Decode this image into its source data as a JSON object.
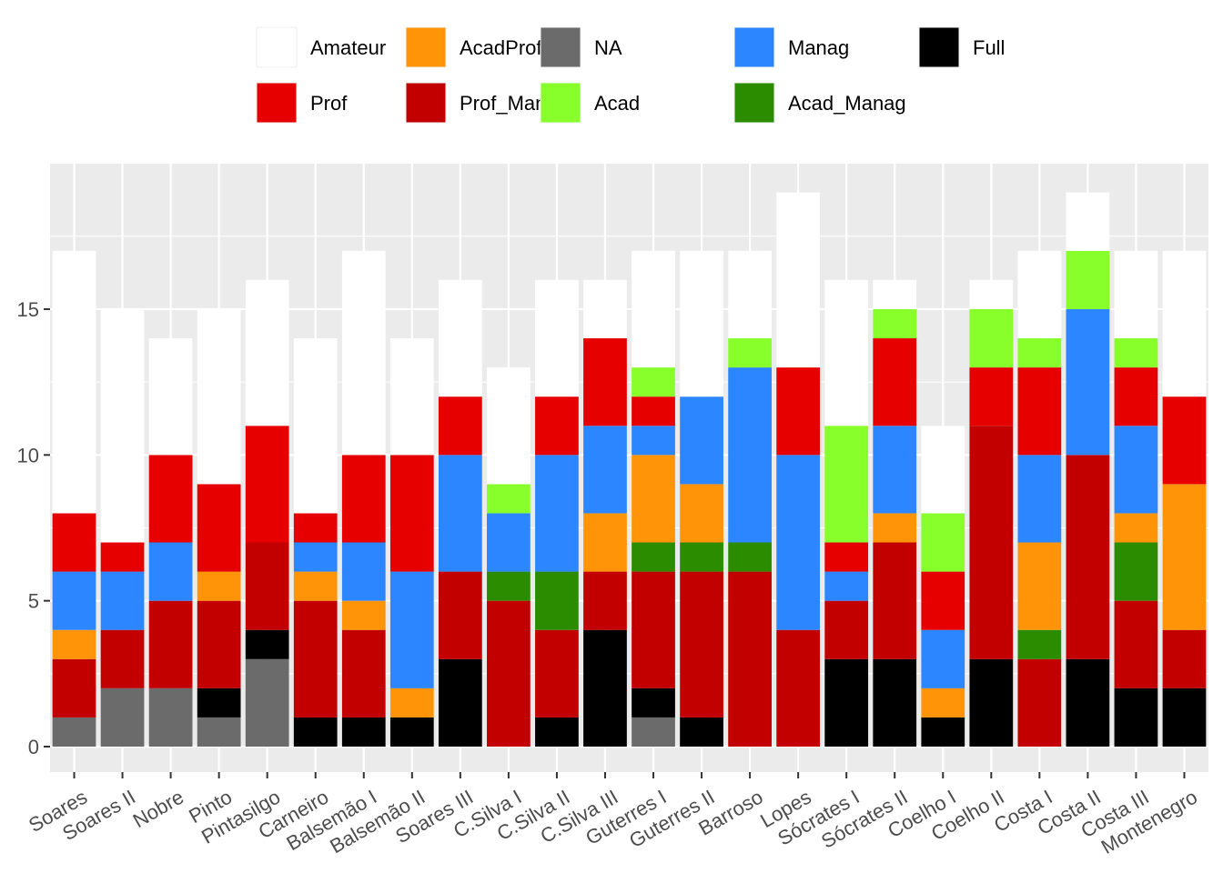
{
  "chart_data": {
    "type": "bar",
    "stacked": true,
    "title": "",
    "xlabel": "",
    "ylabel": "",
    "ylim": [
      0,
      19.5
    ],
    "y_ticks": [
      0,
      5,
      10,
      15
    ],
    "grid": true,
    "legend_position": "top",
    "categories": [
      "Soares",
      "Soares II",
      "Nobre",
      "Pinto",
      "Pintasilgo",
      "Carneiro",
      "Balsemão I",
      "Balsemão II",
      "Soares III",
      "C.Silva I",
      "C.Silva II",
      "C.Silva III",
      "Guterres I",
      "Guterres II",
      "Barroso",
      "Lopes",
      "Sócrates I",
      "Sócrates II",
      "Coelho I",
      "Coelho II",
      "Costa I",
      "Costa II",
      "Costa III",
      "Montenegro"
    ],
    "legend_order": [
      "Amateur",
      "Prof",
      "AcadProf",
      "Prof_Manag",
      "NA",
      "Acad",
      "Manag",
      "Acad_Manag",
      "Full"
    ],
    "stack_order": [
      "NA",
      "Full",
      "Prof_Manag",
      "Acad_Manag",
      "AcadProf",
      "Manag",
      "Prof",
      "Acad",
      "Amateur"
    ],
    "colors": {
      "Amateur": "#ffffff",
      "Acad": "#88ff2a",
      "Prof": "#e60000",
      "Manag": "#2b86ff",
      "AcadProf": "#ff9408",
      "Acad_Manag": "#2b8c00",
      "Prof_Manag": "#c30000",
      "Full": "#000000",
      "NA": "#6b6b6b"
    },
    "series": [
      {
        "name": "NA",
        "values": [
          1,
          2,
          2,
          1,
          3,
          0,
          0,
          0,
          0,
          0,
          0,
          0,
          1,
          0,
          0,
          0,
          0,
          0,
          0,
          0,
          0,
          0,
          0,
          0
        ]
      },
      {
        "name": "Full",
        "values": [
          0,
          0,
          0,
          1,
          1,
          1,
          1,
          1,
          3,
          0,
          1,
          4,
          1,
          1,
          0,
          0,
          3,
          3,
          1,
          3,
          0,
          3,
          2,
          2
        ]
      },
      {
        "name": "Prof_Manag",
        "values": [
          2,
          2,
          3,
          3,
          3,
          4,
          3,
          0,
          3,
          5,
          3,
          2,
          4,
          5,
          6,
          4,
          2,
          4,
          0,
          8,
          3,
          7,
          3,
          2
        ]
      },
      {
        "name": "Acad_Manag",
        "values": [
          0,
          0,
          0,
          0,
          0,
          0,
          0,
          0,
          0,
          1,
          2,
          0,
          1,
          1,
          1,
          0,
          0,
          0,
          0,
          0,
          1,
          0,
          2,
          0
        ]
      },
      {
        "name": "AcadProf",
        "values": [
          1,
          0,
          0,
          1,
          0,
          1,
          1,
          1,
          0,
          0,
          0,
          2,
          3,
          2,
          0,
          0,
          0,
          1,
          1,
          0,
          3,
          0,
          1,
          5
        ]
      },
      {
        "name": "Manag",
        "values": [
          2,
          2,
          2,
          0,
          0,
          1,
          2,
          4,
          4,
          2,
          4,
          3,
          1,
          3,
          6,
          6,
          1,
          3,
          2,
          0,
          3,
          5,
          3,
          0
        ]
      },
      {
        "name": "Prof",
        "values": [
          2,
          1,
          3,
          3,
          4,
          1,
          3,
          4,
          2,
          0,
          2,
          3,
          1,
          0,
          0,
          3,
          1,
          3,
          2,
          2,
          3,
          0,
          2,
          3
        ]
      },
      {
        "name": "Acad",
        "values": [
          0,
          0,
          0,
          0,
          0,
          0,
          0,
          0,
          0,
          1,
          0,
          0,
          1,
          0,
          1,
          0,
          4,
          1,
          2,
          2,
          1,
          2,
          1,
          0
        ]
      },
      {
        "name": "Amateur",
        "values": [
          9,
          8,
          4,
          6,
          5,
          6,
          7,
          4,
          4,
          4,
          4,
          2,
          4,
          5,
          3,
          6,
          5,
          1,
          3,
          1,
          3,
          2,
          3,
          5
        ]
      }
    ]
  }
}
